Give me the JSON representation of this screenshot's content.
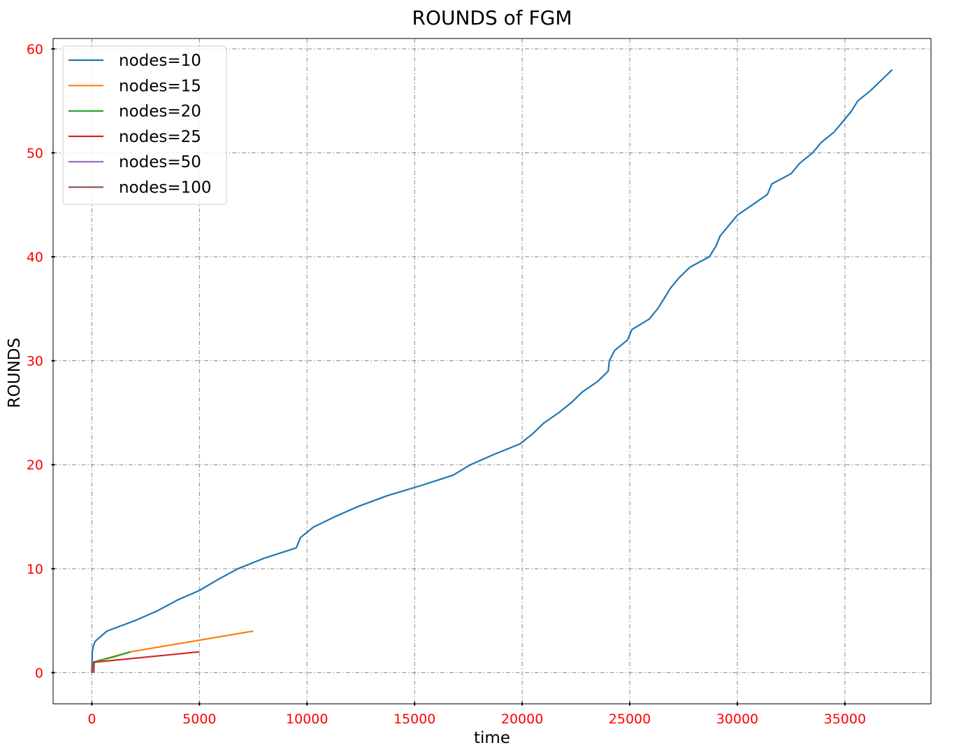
{
  "chart_data": {
    "type": "line",
    "title": "ROUNDS of FGM",
    "xlabel": "time",
    "ylabel": "ROUNDS",
    "xlim": [
      -1800,
      39000
    ],
    "ylim": [
      -3,
      61
    ],
    "xticks": [
      0,
      5000,
      10000,
      15000,
      20000,
      25000,
      30000,
      35000
    ],
    "yticks": [
      0,
      10,
      20,
      30,
      40,
      50,
      60
    ],
    "grid": true,
    "legend_position": "upper-left",
    "colors": {
      "tick_labels": "#ff0000",
      "grid": "#888888"
    },
    "series": [
      {
        "name": "nodes=10",
        "color": "#1f77b4",
        "x": [
          0,
          20,
          60,
          150,
          700,
          2000,
          3000,
          4000,
          5000,
          5900,
          6800,
          8000,
          9500,
          9700,
          10300,
          11300,
          12400,
          13700,
          15300,
          16800,
          17600,
          18700,
          19900,
          20500,
          21000,
          21700,
          22300,
          22800,
          23500,
          24000,
          24050,
          24300,
          24900,
          25100,
          25900,
          26300,
          26600,
          26900,
          27300,
          27800,
          28700,
          29000,
          29200,
          29600,
          30000,
          30700,
          31400,
          31600,
          32500,
          32900,
          33500,
          33900,
          34500,
          35300,
          35600,
          36200,
          37200
        ],
        "y": [
          0,
          2,
          2.5,
          3,
          4,
          5,
          5.9,
          7,
          7.9,
          9,
          10,
          11,
          12,
          13,
          14,
          15,
          16,
          17,
          18,
          19,
          20,
          21,
          22,
          23,
          24,
          25,
          26,
          27,
          28,
          29,
          30,
          31,
          32,
          33,
          34,
          35,
          36,
          37,
          38,
          39,
          40,
          41,
          42,
          43,
          44,
          45,
          46,
          47,
          48,
          49,
          50,
          51,
          52,
          54,
          55,
          56,
          58
        ]
      },
      {
        "name": "nodes=15",
        "color": "#ff7f0e",
        "x": [
          0,
          50,
          1800,
          7500
        ],
        "y": [
          0,
          1,
          2,
          4
        ]
      },
      {
        "name": "nodes=20",
        "color": "#2ca02c",
        "x": [
          0,
          40,
          1000,
          1800
        ],
        "y": [
          0,
          1,
          1.5,
          2
        ]
      },
      {
        "name": "nodes=25",
        "color": "#d62728",
        "x": [
          0,
          20,
          80,
          5000
        ],
        "y": [
          0,
          0.5,
          1,
          2
        ]
      },
      {
        "name": "nodes=50",
        "color": "#9467bd",
        "x": [
          60,
          80,
          100
        ],
        "y": [
          0,
          0.5,
          1
        ]
      },
      {
        "name": "nodes=100",
        "color": "#8c564b",
        "x": [
          90,
          100,
          110
        ],
        "y": [
          0,
          0.5,
          1
        ]
      }
    ]
  }
}
